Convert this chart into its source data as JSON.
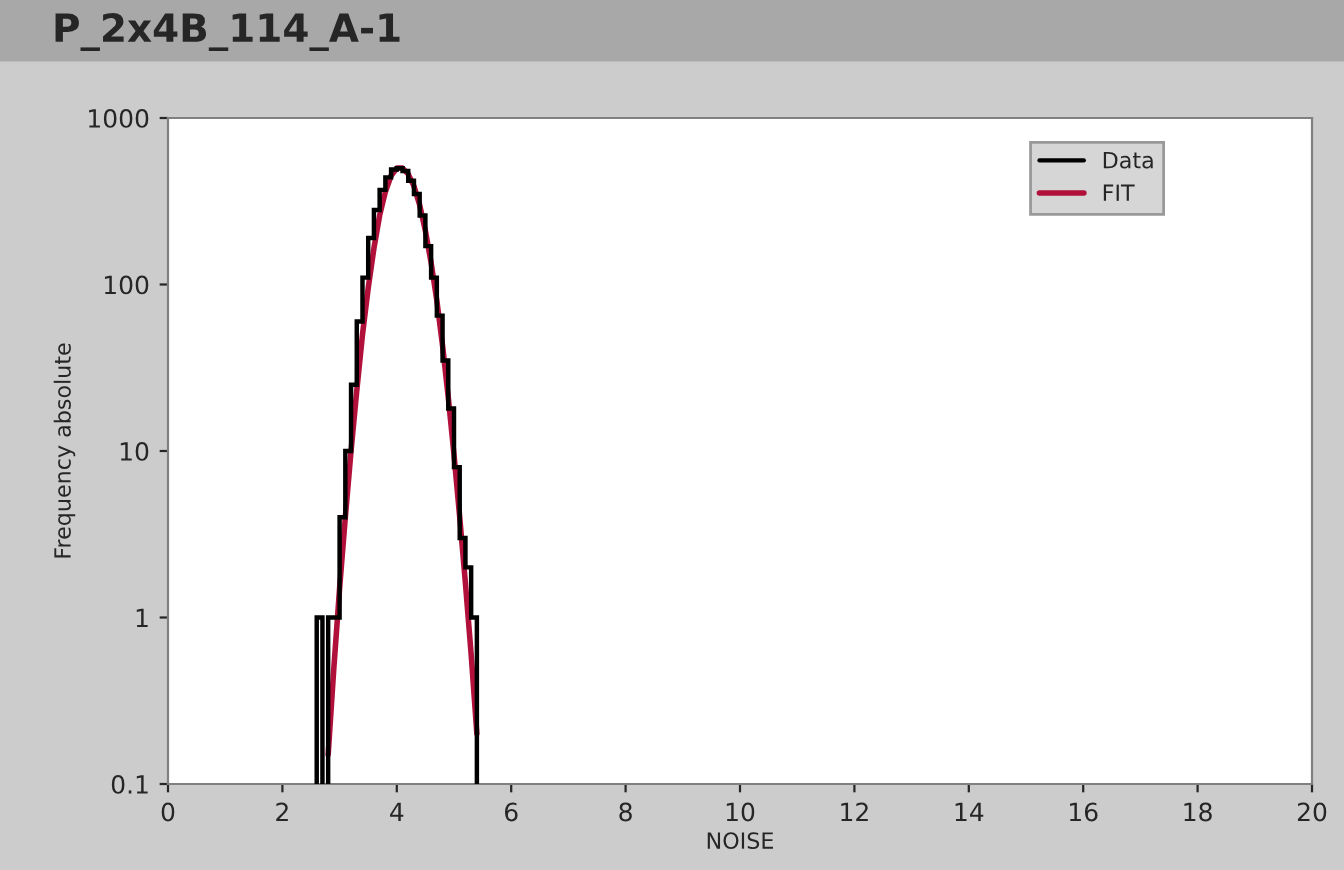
{
  "chart_data": {
    "type": "histogram",
    "title": "P_2x4B_114_A-1",
    "xlabel": "NOISE",
    "ylabel": "Frequency absolute",
    "xlim": [
      0,
      20
    ],
    "xticks": [
      0,
      2,
      4,
      6,
      8,
      10,
      12,
      14,
      16,
      18,
      20
    ],
    "ylim": [
      0.1,
      1000
    ],
    "yticks": [
      0.1,
      1,
      10,
      100,
      1000
    ],
    "log": true,
    "grid": false,
    "legend": "top right",
    "series": [
      {
        "name": "Data",
        "color": "#000000",
        "bins": [
          2.6,
          2.7,
          2.8,
          2.9,
          3.0,
          3.1,
          3.2,
          3.3,
          3.4,
          3.5,
          3.6,
          3.7,
          3.8,
          3.9,
          4.0,
          4.1,
          4.2,
          4.3,
          4.4,
          4.5,
          4.6,
          4.7,
          4.8,
          4.9,
          5.0,
          5.1,
          5.2,
          5.3,
          5.4
        ],
        "values": [
          1,
          null,
          1,
          1,
          4,
          10,
          25,
          60,
          110,
          190,
          280,
          370,
          440,
          490,
          500,
          480,
          420,
          350,
          260,
          170,
          110,
          65,
          35,
          18,
          8,
          3,
          2,
          1
        ]
      },
      {
        "name": "FIT",
        "type": "line",
        "color": "#b0103a",
        "x": [
          2.8,
          2.9,
          3.0,
          3.1,
          3.2,
          3.3,
          3.4,
          3.5,
          3.6,
          3.7,
          3.8,
          3.9,
          4.0,
          4.1,
          4.2,
          4.3,
          4.4,
          4.5,
          4.6,
          4.7,
          4.8,
          4.9,
          5.0,
          5.1,
          5.2,
          5.3,
          5.4
        ],
        "values": [
          0.15,
          0.5,
          1.5,
          4,
          10,
          23,
          50,
          95,
          165,
          260,
          360,
          450,
          500,
          500,
          460,
          390,
          300,
          210,
          135,
          80,
          43,
          21,
          9.5,
          4,
          1.6,
          0.6,
          0.2
        ]
      }
    ]
  }
}
